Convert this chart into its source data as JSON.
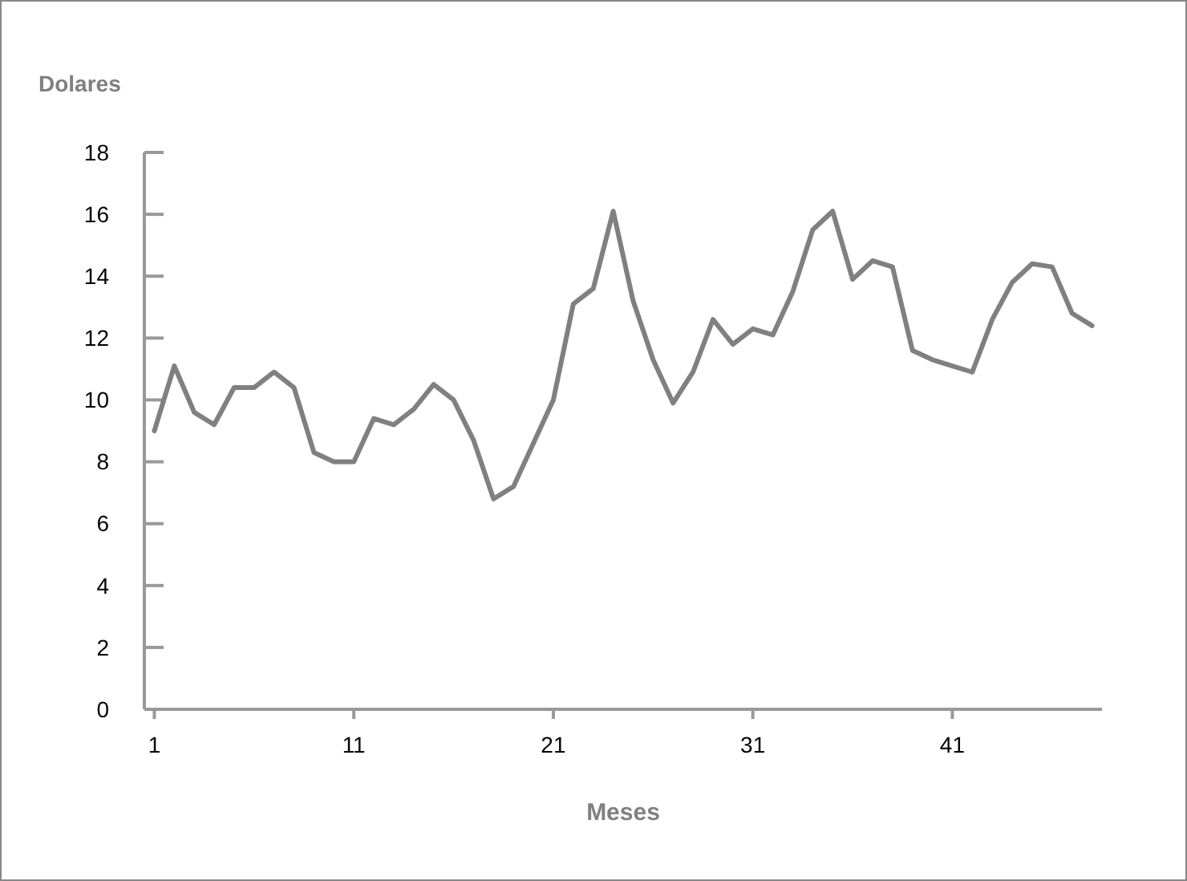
{
  "chart_data": {
    "type": "line",
    "ylabel": "Dolares",
    "xlabel": "Meses",
    "x": [
      1,
      2,
      3,
      4,
      5,
      6,
      7,
      8,
      9,
      10,
      11,
      12,
      13,
      14,
      15,
      16,
      17,
      18,
      19,
      20,
      21,
      22,
      23,
      24,
      25,
      26,
      27,
      28,
      29,
      30,
      31,
      32,
      33,
      34,
      35,
      36,
      37,
      38,
      39,
      40,
      41,
      42,
      43,
      44,
      45,
      46,
      47,
      48
    ],
    "series": [
      {
        "color": "#808080",
        "values": [
          9.0,
          11.1,
          9.6,
          9.2,
          10.4,
          10.4,
          10.9,
          10.4,
          8.3,
          8.0,
          8.0,
          9.4,
          9.2,
          9.7,
          10.5,
          10.0,
          8.7,
          6.8,
          7.2,
          8.6,
          10.0,
          13.1,
          13.6,
          16.1,
          13.2,
          11.3,
          9.9,
          10.9,
          12.6,
          11.8,
          12.3,
          12.1,
          13.5,
          15.5,
          16.1,
          13.9,
          14.5,
          14.3,
          11.6,
          11.3,
          11.1,
          10.9,
          12.6,
          13.8,
          14.4,
          14.3,
          12.8,
          12.4
        ]
      }
    ],
    "xlim": [
      0.5,
      48.5
    ],
    "xticks": [
      1,
      11,
      21,
      31,
      41
    ],
    "ylim": [
      0,
      18
    ],
    "yticks": [
      0,
      2,
      4,
      6,
      8,
      10,
      12,
      14,
      16,
      18
    ],
    "marker": "none",
    "line_style": "solid"
  }
}
